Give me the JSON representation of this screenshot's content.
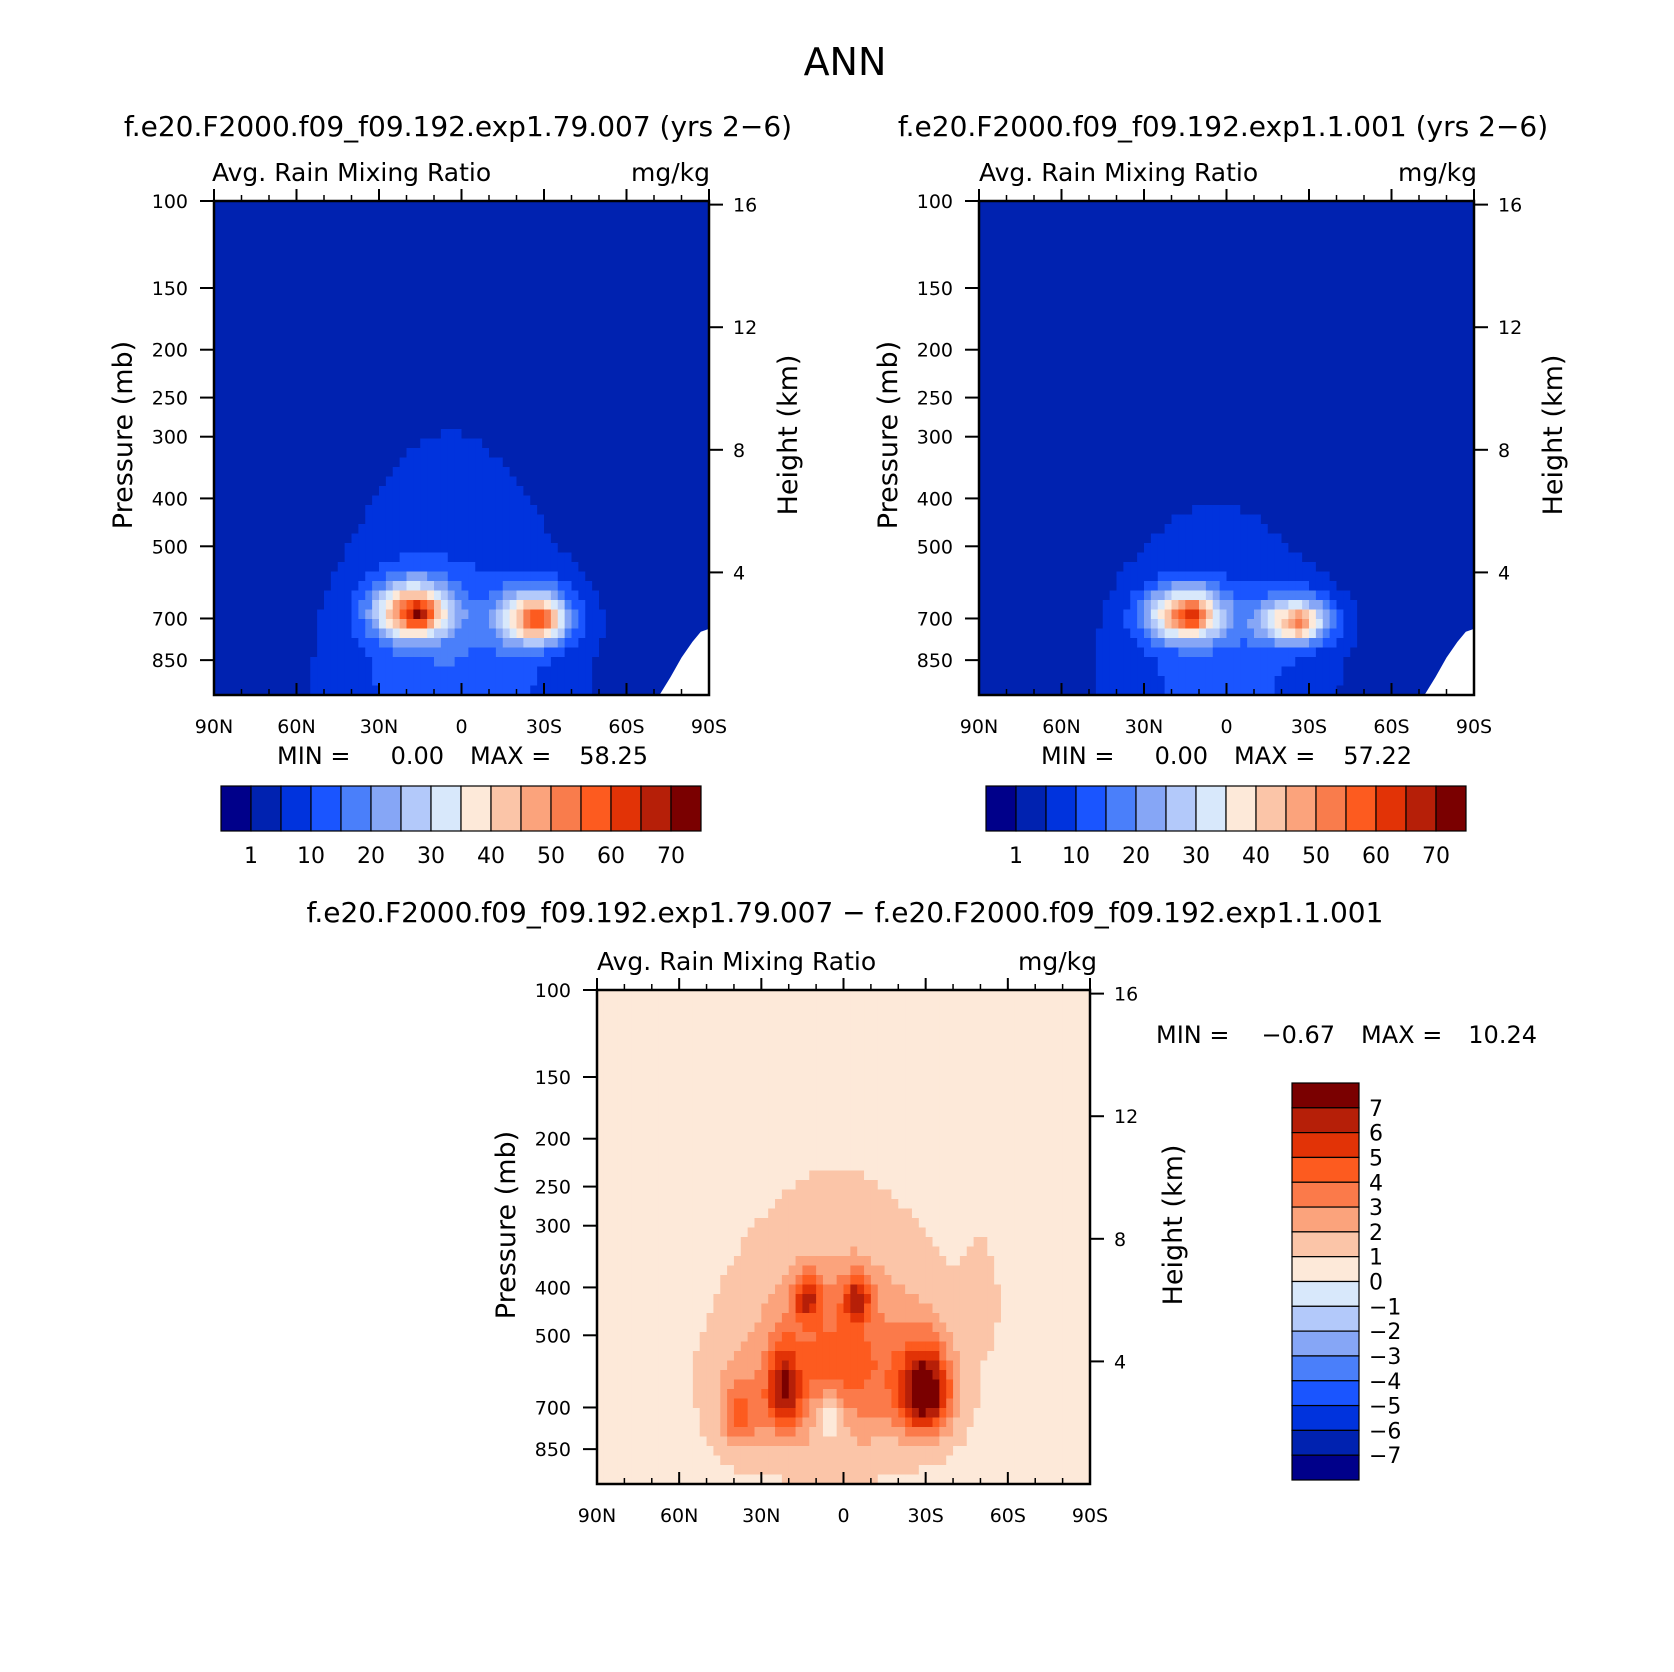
{
  "page_title": "ANN",
  "colors": {
    "seq": [
      "#00008a",
      "#0022b0",
      "#0033dd",
      "#1a55ff",
      "#4a7ffa",
      "#86a6f6",
      "#b3c9fa",
      "#d8e8fb",
      "#fde9d9",
      "#fbc5a8",
      "#fba37c",
      "#f97c4c",
      "#fd5b1f",
      "#e23306",
      "#b61f08",
      "#7a0000"
    ],
    "div": [
      "#7a0000",
      "#b61f08",
      "#e23306",
      "#fd5b1f",
      "#fb7a4a",
      "#fba37c",
      "#fbc5a8",
      "#fde9d9",
      "#d8e8fb",
      "#b3c9fa",
      "#86a6f6",
      "#4a7ffa",
      "#1a55ff",
      "#0033dd",
      "#0022b0",
      "#00008a"
    ]
  },
  "chart_data": [
    {
      "id": "panel-a",
      "type": "heatmap",
      "case": "f.e20.F2000.f09_f09.192.exp1.79.007 (yrs 2−6)",
      "title": "Avg. Rain Mixing Ratio",
      "units": "mg/kg",
      "ylabel": "Pressure (mb)",
      "ylabel2": "Height (km)",
      "xticks": [
        "90N",
        "60N",
        "30N",
        "0",
        "30S",
        "60S",
        "90S"
      ],
      "xlim": [
        90,
        -90
      ],
      "yticks": [
        100,
        150,
        200,
        250,
        300,
        400,
        500,
        700,
        850
      ],
      "ylim": [
        100,
        1000
      ],
      "y2ticks": [
        16,
        12,
        8,
        4
      ],
      "stats": {
        "min_label": "MIN =",
        "min": "0.00",
        "max_label": "MAX =",
        "max": "58.25"
      },
      "colorbar_labels": [
        "1",
        "10",
        "20",
        "30",
        "40",
        "50",
        "60",
        "70"
      ],
      "field": {
        "baseline": 1,
        "blobs": [
          {
            "lat": 5,
            "p": 1000,
            "slat": 52,
            "sp": 780,
            "amp": 8
          },
          {
            "lat": 0,
            "p": 850,
            "slat": 38,
            "sp": 350,
            "amp": 6
          },
          {
            "lat": 18,
            "p": 680,
            "slat": 14,
            "sp": 90,
            "amp": 45
          },
          {
            "lat": -27,
            "p": 700,
            "slat": 13,
            "sp": 90,
            "amp": 40
          },
          {
            "lat": 15,
            "p": 690,
            "slat": 5,
            "sp": 45,
            "amp": 16
          },
          {
            "lat": -28,
            "p": 705,
            "slat": 5,
            "sp": 45,
            "amp": 14
          }
        ]
      }
    },
    {
      "id": "panel-b",
      "type": "heatmap",
      "case": "f.e20.F2000.f09_f09.192.exp1.1.001 (yrs 2−6)",
      "title": "Avg. Rain Mixing Ratio",
      "units": "mg/kg",
      "ylabel": "Pressure (mb)",
      "ylabel2": "Height (km)",
      "xticks": [
        "90N",
        "60N",
        "30N",
        "0",
        "30S",
        "60S",
        "90S"
      ],
      "xlim": [
        90,
        -90
      ],
      "yticks": [
        100,
        150,
        200,
        250,
        300,
        400,
        500,
        700,
        850
      ],
      "ylim": [
        100,
        1000
      ],
      "y2ticks": [
        16,
        12,
        8,
        4
      ],
      "stats": {
        "min_label": "MIN =",
        "min": "0.00",
        "max_label": "MAX =",
        "max": "57.22"
      },
      "colorbar_labels": [
        "1",
        "10",
        "20",
        "30",
        "40",
        "50",
        "60",
        "70"
      ],
      "field": {
        "baseline": 1,
        "blobs": [
          {
            "lat": 5,
            "p": 1000,
            "slat": 50,
            "sp": 700,
            "amp": 7
          },
          {
            "lat": 0,
            "p": 850,
            "slat": 34,
            "sp": 300,
            "amp": 5
          },
          {
            "lat": 15,
            "p": 690,
            "slat": 14,
            "sp": 85,
            "amp": 43
          },
          {
            "lat": -25,
            "p": 710,
            "slat": 13,
            "sp": 80,
            "amp": 36
          },
          {
            "lat": 12,
            "p": 690,
            "slat": 5,
            "sp": 40,
            "amp": 14
          },
          {
            "lat": -27,
            "p": 715,
            "slat": 5,
            "sp": 40,
            "amp": 10
          }
        ]
      }
    },
    {
      "id": "panel-diff",
      "type": "heatmap",
      "case": "f.e20.F2000.f09_f09.192.exp1.79.007 − f.e20.F2000.f09_f09.192.exp1.1.001",
      "title": "Avg. Rain Mixing Ratio",
      "units": "mg/kg",
      "ylabel": "Pressure (mb)",
      "ylabel2": "Height (km)",
      "xticks": [
        "90N",
        "60N",
        "30N",
        "0",
        "30S",
        "60S",
        "90S"
      ],
      "xlim": [
        90,
        -90
      ],
      "yticks": [
        100,
        150,
        200,
        250,
        300,
        400,
        500,
        700,
        850
      ],
      "ylim": [
        100,
        1000
      ],
      "y2ticks": [
        16,
        12,
        8,
        4
      ],
      "stats": {
        "min_label": "MIN =",
        "min": "−0.67",
        "max_label": "MAX =",
        "max": "10.24"
      },
      "colorbar_labels": [
        "7",
        "6",
        "5",
        "4",
        "3",
        "2",
        "1",
        "0",
        "−1",
        "−2",
        "−3",
        "−4",
        "−5",
        "−6",
        "−7"
      ],
      "field": {
        "baseline": 0.5,
        "blobs": [
          {
            "lat": 5,
            "p": 640,
            "slat": 44,
            "sp": 330,
            "amp": 1.6
          },
          {
            "lat": 0,
            "p": 560,
            "slat": 28,
            "sp": 200,
            "amp": 2.5
          },
          {
            "lat": 13,
            "p": 420,
            "slat": 5,
            "sp": 45,
            "amp": 4
          },
          {
            "lat": -5,
            "p": 420,
            "slat": 5,
            "sp": 45,
            "amp": 4
          },
          {
            "lat": -30,
            "p": 650,
            "slat": 9,
            "sp": 130,
            "amp": 7
          },
          {
            "lat": 22,
            "p": 650,
            "slat": 6,
            "sp": 130,
            "amp": 4.5
          },
          {
            "lat": 38,
            "p": 720,
            "slat": 7,
            "sp": 120,
            "amp": 3
          },
          {
            "lat": 5,
            "p": 730,
            "slat": 6,
            "sp": 90,
            "amp": -2.5
          },
          {
            "lat": -50,
            "p": 420,
            "slat": 6,
            "sp": 90,
            "amp": 1.2
          }
        ]
      }
    }
  ]
}
